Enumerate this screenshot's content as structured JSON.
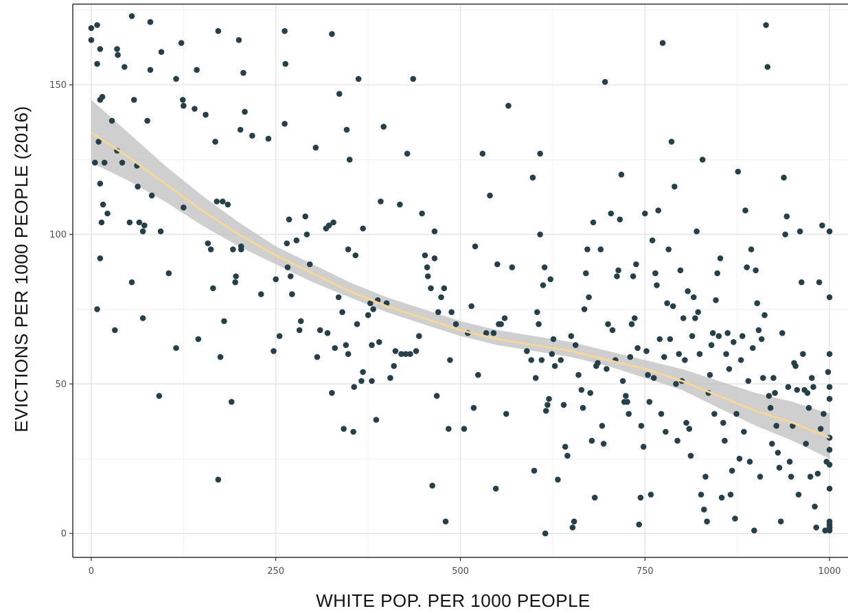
{
  "chart_data": {
    "type": "scatter",
    "title": "",
    "xlabel": "WHITE POP. PER 1000 PEOPLE",
    "ylabel": "EVICTIONS PER 1000 PEOPLE (2016)",
    "xlim": [
      -25,
      1025
    ],
    "ylim": [
      -8,
      177
    ],
    "x_ticks": [
      0,
      250,
      500,
      750,
      1000
    ],
    "y_ticks": [
      0,
      50,
      100,
      150
    ],
    "x_tick_labels": [
      "0",
      "250",
      "500",
      "750",
      "1000"
    ],
    "y_tick_labels": [
      "0",
      "50",
      "100",
      "150"
    ],
    "grid": true,
    "point_color": "#26404a",
    "trend_color": "#f5d79a",
    "band_color": "#bdbdbd",
    "points": [
      [
        0,
        169
      ],
      [
        0,
        165
      ],
      [
        8,
        170
      ],
      [
        12,
        162
      ],
      [
        5,
        124
      ],
      [
        10,
        131
      ],
      [
        15,
        146
      ],
      [
        12,
        145
      ],
      [
        8,
        157
      ],
      [
        12,
        117
      ],
      [
        16,
        110
      ],
      [
        18,
        124
      ],
      [
        14,
        104
      ],
      [
        22,
        107
      ],
      [
        12,
        92
      ],
      [
        8,
        75
      ],
      [
        28,
        138
      ],
      [
        32,
        68
      ],
      [
        35,
        128
      ],
      [
        35,
        162
      ],
      [
        36,
        160
      ],
      [
        45,
        156
      ],
      [
        42,
        124
      ],
      [
        55,
        173
      ],
      [
        58,
        145
      ],
      [
        62,
        123
      ],
      [
        63,
        116
      ],
      [
        65,
        104
      ],
      [
        70,
        101
      ],
      [
        70,
        72
      ],
      [
        52,
        104
      ],
      [
        55,
        84
      ],
      [
        72,
        103
      ],
      [
        76,
        138
      ],
      [
        80,
        155
      ],
      [
        80,
        171
      ],
      [
        82,
        113
      ],
      [
        95,
        161
      ],
      [
        94,
        101
      ],
      [
        92,
        46
      ],
      [
        105,
        87
      ],
      [
        115,
        62
      ],
      [
        115,
        152
      ],
      [
        122,
        164
      ],
      [
        124,
        145
      ],
      [
        125,
        143
      ],
      [
        125,
        109
      ],
      [
        140,
        142
      ],
      [
        143,
        155
      ],
      [
        145,
        65
      ],
      [
        155,
        140
      ],
      [
        158,
        97
      ],
      [
        162,
        95
      ],
      [
        165,
        82
      ],
      [
        168,
        131
      ],
      [
        170,
        111
      ],
      [
        172,
        168
      ],
      [
        172,
        18
      ],
      [
        175,
        59
      ],
      [
        178,
        111
      ],
      [
        180,
        71
      ],
      [
        185,
        110
      ],
      [
        190,
        44
      ],
      [
        192,
        95
      ],
      [
        195,
        84
      ],
      [
        196,
        86
      ],
      [
        200,
        165
      ],
      [
        202,
        135
      ],
      [
        203,
        96
      ],
      [
        203,
        95
      ],
      [
        206,
        154
      ],
      [
        208,
        141
      ],
      [
        218,
        133
      ],
      [
        230,
        80
      ],
      [
        240,
        132
      ],
      [
        247,
        61
      ],
      [
        250,
        85
      ],
      [
        255,
        66
      ],
      [
        262,
        168
      ],
      [
        262,
        137
      ],
      [
        263,
        157
      ],
      [
        265,
        97
      ],
      [
        266,
        89
      ],
      [
        268,
        105
      ],
      [
        270,
        86
      ],
      [
        272,
        80
      ],
      [
        278,
        98
      ],
      [
        282,
        68
      ],
      [
        284,
        71
      ],
      [
        290,
        106
      ],
      [
        292,
        100
      ],
      [
        296,
        90
      ],
      [
        304,
        129
      ],
      [
        306,
        59
      ],
      [
        310,
        68
      ],
      [
        318,
        102
      ],
      [
        320,
        67
      ],
      [
        322,
        103
      ],
      [
        326,
        47
      ],
      [
        326,
        167
      ],
      [
        328,
        104
      ],
      [
        330,
        62
      ],
      [
        335,
        79
      ],
      [
        336,
        147
      ],
      [
        340,
        74
      ],
      [
        342,
        35
      ],
      [
        345,
        63
      ],
      [
        346,
        135
      ],
      [
        348,
        60
      ],
      [
        350,
        125
      ],
      [
        348,
        95
      ],
      [
        355,
        34
      ],
      [
        356,
        49
      ],
      [
        358,
        93
      ],
      [
        360,
        70
      ],
      [
        362,
        152
      ],
      [
        366,
        51
      ],
      [
        368,
        102
      ],
      [
        368,
        54
      ],
      [
        375,
        73
      ],
      [
        378,
        77
      ],
      [
        380,
        51
      ],
      [
        380,
        63
      ],
      [
        382,
        75
      ],
      [
        386,
        38
      ],
      [
        388,
        78
      ],
      [
        390,
        64
      ],
      [
        392,
        111
      ],
      [
        396,
        136
      ],
      [
        400,
        77
      ],
      [
        405,
        52
      ],
      [
        410,
        56
      ],
      [
        412,
        61
      ],
      [
        418,
        110
      ],
      [
        420,
        60
      ],
      [
        426,
        60
      ],
      [
        428,
        127
      ],
      [
        432,
        60
      ],
      [
        436,
        152
      ],
      [
        440,
        61
      ],
      [
        444,
        66
      ],
      [
        448,
        107
      ],
      [
        452,
        93
      ],
      [
        455,
        89
      ],
      [
        456,
        86
      ],
      [
        460,
        82
      ],
      [
        462,
        16
      ],
      [
        465,
        101
      ],
      [
        465,
        92
      ],
      [
        468,
        46
      ],
      [
        470,
        74
      ],
      [
        474,
        79
      ],
      [
        478,
        82
      ],
      [
        480,
        4
      ],
      [
        484,
        35
      ],
      [
        486,
        58
      ],
      [
        488,
        74
      ],
      [
        494,
        70
      ],
      [
        505,
        35
      ],
      [
        510,
        67
      ],
      [
        515,
        76
      ],
      [
        518,
        42
      ],
      [
        520,
        96
      ],
      [
        524,
        53
      ],
      [
        530,
        127
      ],
      [
        535,
        67
      ],
      [
        540,
        113
      ],
      [
        545,
        67
      ],
      [
        548,
        15
      ],
      [
        550,
        90
      ],
      [
        552,
        70
      ],
      [
        555,
        70
      ],
      [
        560,
        72
      ],
      [
        562,
        40
      ],
      [
        565,
        143
      ],
      [
        570,
        89
      ],
      [
        590,
        61
      ],
      [
        596,
        58
      ],
      [
        598,
        119
      ],
      [
        600,
        21
      ],
      [
        602,
        52
      ],
      [
        604,
        74
      ],
      [
        606,
        70
      ],
      [
        608,
        127
      ],
      [
        608,
        100
      ],
      [
        610,
        58
      ],
      [
        612,
        83
      ],
      [
        614,
        89
      ],
      [
        615,
        0
      ],
      [
        616,
        41
      ],
      [
        618,
        43
      ],
      [
        620,
        45
      ],
      [
        622,
        85
      ],
      [
        624,
        60
      ],
      [
        626,
        65
      ],
      [
        628,
        56
      ],
      [
        632,
        18
      ],
      [
        636,
        58
      ],
      [
        640,
        43
      ],
      [
        642,
        29
      ],
      [
        645,
        26
      ],
      [
        650,
        66
      ],
      [
        652,
        2
      ],
      [
        654,
        4
      ],
      [
        656,
        63
      ],
      [
        660,
        53
      ],
      [
        664,
        48
      ],
      [
        666,
        42
      ],
      [
        668,
        75
      ],
      [
        670,
        87
      ],
      [
        672,
        95
      ],
      [
        674,
        79
      ],
      [
        676,
        47
      ],
      [
        678,
        31
      ],
      [
        680,
        104
      ],
      [
        682,
        12
      ],
      [
        684,
        56
      ],
      [
        686,
        57
      ],
      [
        690,
        95
      ],
      [
        692,
        36
      ],
      [
        694,
        30
      ],
      [
        696,
        151
      ],
      [
        698,
        55
      ],
      [
        700,
        70
      ],
      [
        704,
        107
      ],
      [
        706,
        68
      ],
      [
        710,
        58
      ],
      [
        712,
        86
      ],
      [
        714,
        88
      ],
      [
        716,
        105
      ],
      [
        718,
        120
      ],
      [
        720,
        51
      ],
      [
        722,
        44
      ],
      [
        724,
        46
      ],
      [
        726,
        44
      ],
      [
        728,
        40
      ],
      [
        730,
        59
      ],
      [
        732,
        70
      ],
      [
        734,
        86
      ],
      [
        736,
        72
      ],
      [
        738,
        90
      ],
      [
        740,
        62
      ],
      [
        742,
        3
      ],
      [
        744,
        12
      ],
      [
        745,
        36
      ],
      [
        748,
        29
      ],
      [
        750,
        107
      ],
      [
        752,
        61
      ],
      [
        754,
        53
      ],
      [
        756,
        44
      ],
      [
        758,
        13
      ],
      [
        760,
        98
      ],
      [
        762,
        52
      ],
      [
        764,
        87
      ],
      [
        766,
        83
      ],
      [
        768,
        108
      ],
      [
        770,
        65
      ],
      [
        772,
        40
      ],
      [
        774,
        164
      ],
      [
        776,
        59
      ],
      [
        778,
        34
      ],
      [
        780,
        77
      ],
      [
        782,
        95
      ],
      [
        784,
        65
      ],
      [
        786,
        131
      ],
      [
        788,
        76
      ],
      [
        790,
        116
      ],
      [
        792,
        50
      ],
      [
        794,
        31
      ],
      [
        796,
        60
      ],
      [
        798,
        88
      ],
      [
        800,
        51
      ],
      [
        802,
        72
      ],
      [
        804,
        58
      ],
      [
        806,
        37
      ],
      [
        808,
        81
      ],
      [
        810,
        35
      ],
      [
        812,
        26
      ],
      [
        814,
        66
      ],
      [
        816,
        79
      ],
      [
        818,
        72
      ],
      [
        820,
        101
      ],
      [
        822,
        74
      ],
      [
        824,
        60
      ],
      [
        826,
        13
      ],
      [
        828,
        125
      ],
      [
        830,
        8
      ],
      [
        832,
        19
      ],
      [
        834,
        4
      ],
      [
        836,
        47
      ],
      [
        838,
        53
      ],
      [
        840,
        63
      ],
      [
        842,
        67
      ],
      [
        844,
        40
      ],
      [
        846,
        78
      ],
      [
        848,
        87
      ],
      [
        850,
        66
      ],
      [
        852,
        92
      ],
      [
        854,
        12
      ],
      [
        856,
        37
      ],
      [
        858,
        31
      ],
      [
        860,
        60
      ],
      [
        862,
        67
      ],
      [
        864,
        55
      ],
      [
        866,
        13
      ],
      [
        868,
        21
      ],
      [
        870,
        64
      ],
      [
        872,
        5
      ],
      [
        874,
        40
      ],
      [
        876,
        121
      ],
      [
        878,
        25
      ],
      [
        880,
        58
      ],
      [
        882,
        66
      ],
      [
        884,
        34
      ],
      [
        886,
        108
      ],
      [
        888,
        89
      ],
      [
        890,
        51
      ],
      [
        892,
        24
      ],
      [
        894,
        95
      ],
      [
        896,
        62
      ],
      [
        898,
        1
      ],
      [
        900,
        88
      ],
      [
        902,
        77
      ],
      [
        904,
        68
      ],
      [
        906,
        19
      ],
      [
        908,
        65
      ],
      [
        910,
        52
      ],
      [
        912,
        73
      ],
      [
        914,
        170
      ],
      [
        916,
        156
      ],
      [
        918,
        46
      ],
      [
        920,
        42
      ],
      [
        922,
        30
      ],
      [
        924,
        52
      ],
      [
        926,
        47
      ],
      [
        928,
        36
      ],
      [
        930,
        27
      ],
      [
        932,
        22
      ],
      [
        934,
        4
      ],
      [
        936,
        67
      ],
      [
        938,
        119
      ],
      [
        940,
        100
      ],
      [
        942,
        106
      ],
      [
        944,
        49
      ],
      [
        946,
        24
      ],
      [
        948,
        19
      ],
      [
        950,
        36
      ],
      [
        952,
        57
      ],
      [
        954,
        56
      ],
      [
        956,
        48
      ],
      [
        958,
        13
      ],
      [
        960,
        101
      ],
      [
        962,
        84
      ],
      [
        964,
        60
      ],
      [
        966,
        48
      ],
      [
        968,
        30
      ],
      [
        970,
        47
      ],
      [
        972,
        42
      ],
      [
        974,
        19
      ],
      [
        976,
        52
      ],
      [
        978,
        49
      ],
      [
        980,
        9
      ],
      [
        982,
        2
      ],
      [
        984,
        20
      ],
      [
        986,
        84
      ],
      [
        988,
        35
      ],
      [
        990,
        103
      ],
      [
        992,
        40
      ],
      [
        994,
        1
      ],
      [
        996,
        24
      ],
      [
        998,
        54
      ],
      [
        1000,
        101
      ],
      [
        1000,
        79
      ],
      [
        1000,
        60
      ],
      [
        1000,
        49
      ],
      [
        1000,
        45
      ],
      [
        1000,
        32
      ],
      [
        1000,
        28
      ],
      [
        1000,
        23
      ],
      [
        1000,
        15
      ],
      [
        1000,
        4
      ],
      [
        1000,
        3
      ],
      [
        1000,
        2
      ],
      [
        1000,
        1
      ]
    ],
    "trend_line": [
      [
        0,
        134
      ],
      [
        50,
        126
      ],
      [
        100,
        117
      ],
      [
        150,
        108
      ],
      [
        200,
        100
      ],
      [
        250,
        93
      ],
      [
        300,
        87
      ],
      [
        350,
        81
      ],
      [
        400,
        76
      ],
      [
        450,
        72
      ],
      [
        500,
        68
      ],
      [
        550,
        65
      ],
      [
        600,
        63
      ],
      [
        650,
        61
      ],
      [
        700,
        58
      ],
      [
        750,
        55
      ],
      [
        800,
        51
      ],
      [
        850,
        46
      ],
      [
        900,
        41
      ],
      [
        950,
        37
      ],
      [
        1000,
        32
      ]
    ],
    "confidence_band": {
      "upper": [
        [
          0,
          145
        ],
        [
          50,
          134
        ],
        [
          100,
          123
        ],
        [
          150,
          113
        ],
        [
          200,
          104
        ],
        [
          250,
          96
        ],
        [
          300,
          90
        ],
        [
          350,
          84
        ],
        [
          400,
          79
        ],
        [
          450,
          75
        ],
        [
          500,
          71
        ],
        [
          550,
          68
        ],
        [
          600,
          66
        ],
        [
          650,
          64
        ],
        [
          700,
          61
        ],
        [
          750,
          58
        ],
        [
          800,
          55
        ],
        [
          850,
          51
        ],
        [
          900,
          47
        ],
        [
          950,
          44
        ],
        [
          1000,
          40
        ]
      ],
      "lower": [
        [
          0,
          124
        ],
        [
          50,
          118
        ],
        [
          100,
          111
        ],
        [
          150,
          103
        ],
        [
          200,
          96
        ],
        [
          250,
          90
        ],
        [
          300,
          84
        ],
        [
          350,
          79
        ],
        [
          400,
          74
        ],
        [
          450,
          70
        ],
        [
          500,
          66
        ],
        [
          550,
          63
        ],
        [
          600,
          61
        ],
        [
          650,
          59
        ],
        [
          700,
          56
        ],
        [
          750,
          52
        ],
        [
          800,
          48
        ],
        [
          850,
          42
        ],
        [
          900,
          36
        ],
        [
          950,
          31
        ],
        [
          1000,
          25
        ]
      ]
    }
  }
}
